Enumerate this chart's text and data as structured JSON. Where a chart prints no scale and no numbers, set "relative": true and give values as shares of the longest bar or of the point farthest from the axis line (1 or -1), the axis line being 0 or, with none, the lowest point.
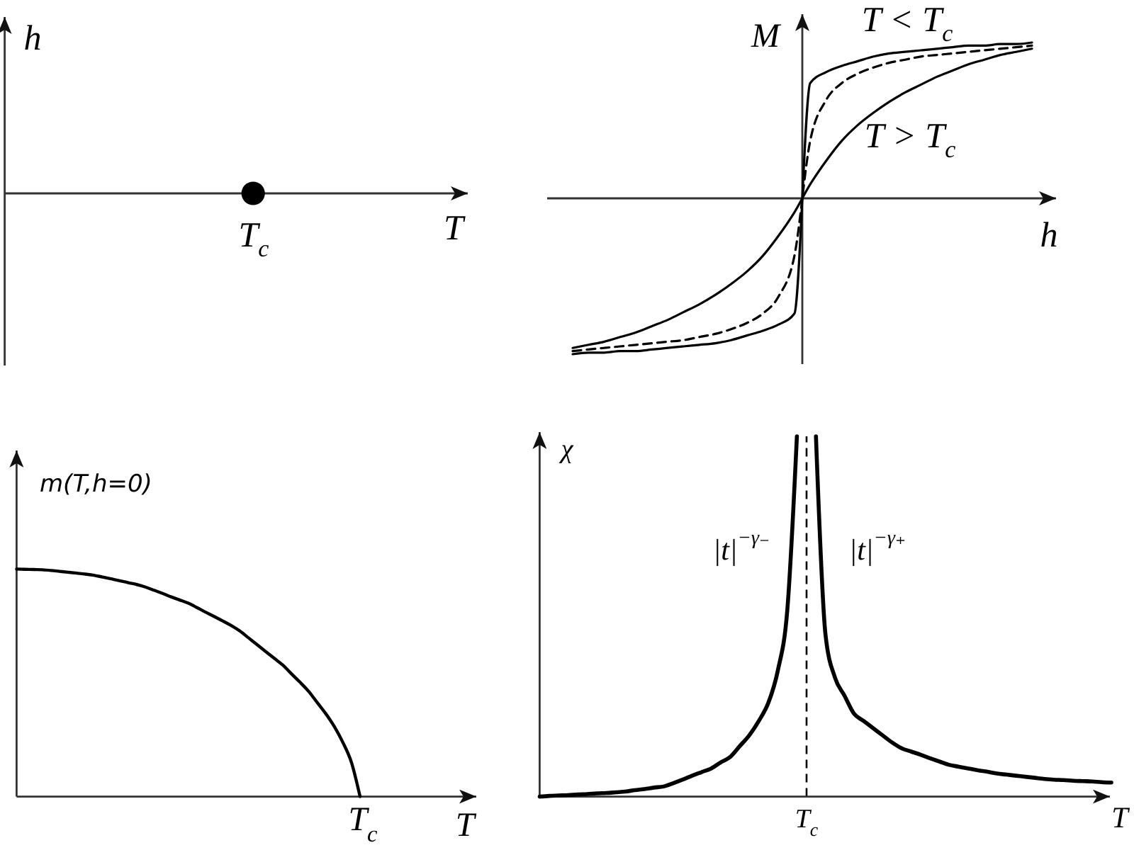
{
  "chart_data": [
    {
      "type": "other",
      "xlabel": "T",
      "ylabel": "h",
      "annotations": [
        "T$_{c}$"
      ]
    },
    {
      "type": "line",
      "xlabel": "h",
      "ylabel": "M",
      "relative": true,
      "categories": [
        null,
        null,
        null,
        null,
        null,
        null,
        null,
        null,
        null,
        null,
        null,
        null,
        null,
        null,
        null,
        null,
        null,
        null,
        null,
        null,
        null,
        null,
        null,
        null,
        null,
        null,
        null,
        null,
        null,
        null
      ],
      "series": [
        {
          "name": "T < T$_{c}$",
          "color": "#000000",
          "values": [
            -1,
            -0.99,
            -0.99,
            -0.98,
            -0.98,
            -0.97,
            -0.96,
            -0.95,
            -0.94,
            -0.93,
            -0.91,
            -0.88,
            -0.85,
            -0.81,
            -0.74,
            0.74,
            0.81,
            0.85,
            0.88,
            0.91,
            0.93,
            0.94,
            0.95,
            0.96,
            0.97,
            0.98,
            0.98,
            0.99,
            0.99,
            1
          ]
        },
        {
          "color": "#000000",
          "line_style": "dashed",
          "values": [
            -0.98,
            -0.97,
            -0.96,
            -0.95,
            -0.94,
            -0.93,
            -0.92,
            -0.91,
            -0.89,
            -0.87,
            -0.84,
            -0.8,
            -0.74,
            -0.63,
            -0.37,
            0.37,
            0.63,
            0.74,
            0.8,
            0.84,
            0.87,
            0.89,
            0.91,
            0.92,
            0.93,
            0.94,
            0.95,
            0.96,
            0.97,
            0.98
          ]
        },
        {
          "name": "T > T$_{c}$",
          "color": "#000000",
          "values": [
            -0.96,
            -0.94,
            -0.92,
            -0.89,
            -0.86,
            -0.82,
            -0.78,
            -0.73,
            -0.68,
            -0.62,
            -0.55,
            -0.47,
            -0.37,
            -0.24,
            -0.09,
            0.09,
            0.24,
            0.37,
            0.47,
            0.55,
            0.62,
            0.68,
            0.73,
            0.78,
            0.82,
            0.86,
            0.89,
            0.92,
            0.94,
            0.96
          ]
        }
      ]
    },
    {
      "type": "line",
      "xlabel": "T",
      "ylabel": "m(T,h=0)",
      "relative": true,
      "categories": [
        null,
        null,
        null,
        null,
        null,
        null,
        null,
        null,
        null,
        null,
        null,
        null,
        null,
        null,
        null,
        null,
        null,
        null,
        null,
        null,
        null,
        null,
        null,
        null,
        null,
        null,
        null,
        null,
        null,
        null,
        null,
        null,
        null,
        null,
        null,
        null,
        null,
        null,
        null,
        null,
        null
      ],
      "annotations": [
        "T$_{c}$"
      ],
      "series": [
        {
          "color": "#000000",
          "values": [
            1,
            0.999,
            0.998,
            0.997,
            0.994,
            0.99,
            0.986,
            0.982,
            0.978,
            0.973,
            0.965,
            0.957,
            0.949,
            0.94,
            0.932,
            0.921,
            0.907,
            0.893,
            0.878,
            0.864,
            0.85,
            0.831,
            0.811,
            0.792,
            0.772,
            0.752,
            0.728,
            0.698,
            0.668,
            0.638,
            0.608,
            0.578,
            0.54,
            0.503,
            0.463,
            0.414,
            0.365,
            0.308,
            0.238,
            0.15,
            0
          ]
        }
      ]
    },
    {
      "type": "line",
      "xlabel": "T",
      "ylabel": "χ",
      "relative": true,
      "categories": [
        null,
        null,
        null,
        null,
        null,
        null,
        null,
        null,
        null,
        null,
        null,
        null,
        null,
        null,
        null,
        null,
        null,
        null,
        null,
        null,
        null,
        null,
        null,
        null,
        null,
        null,
        null,
        null,
        null,
        null,
        null,
        null,
        null,
        null,
        null,
        null,
        null,
        null,
        null,
        null,
        null,
        null,
        null,
        null,
        null,
        null,
        null,
        null,
        null,
        null,
        null,
        null,
        null,
        null,
        null,
        null,
        null,
        null,
        null,
        null,
        null
      ],
      "annotations": [
        "T$_{c}$"
      ],
      "series": [
        {
          "name": "|t|$^{−γ₋}$",
          "color": "#000000",
          "values": [
            0,
            0.002,
            0.003,
            0.004,
            0.006,
            0.007,
            0.009,
            0.01,
            0.012,
            0.014,
            0.018,
            0.021,
            0.025,
            0.028,
            0.037,
            0.047,
            0.058,
            0.068,
            0.078,
            0.095,
            0.11,
            0.14,
            0.17,
            0.21,
            0.26,
            0.35,
            0.52,
            1,
            null,
            null,
            null,
            null,
            null,
            null,
            null,
            null,
            null,
            null,
            null,
            null,
            null,
            null,
            null,
            null,
            null,
            null,
            null,
            null,
            null,
            null,
            null,
            null,
            null,
            null,
            null,
            null,
            null,
            null,
            null,
            null,
            null
          ]
        },
        {
          "name": "|t|$^{−γ₊}$",
          "color": "#000000",
          "values": [
            null,
            null,
            null,
            null,
            null,
            null,
            null,
            null,
            null,
            null,
            null,
            null,
            null,
            null,
            null,
            null,
            null,
            null,
            null,
            null,
            null,
            null,
            null,
            null,
            null,
            null,
            null,
            null,
            null,
            1,
            0.45,
            0.33,
            0.28,
            0.23,
            0.21,
            0.19,
            0.17,
            0.15,
            0.134,
            0.125,
            0.116,
            0.106,
            0.097,
            0.088,
            0.083,
            0.078,
            0.073,
            0.069,
            0.064,
            0.061,
            0.058,
            0.055,
            0.052,
            0.049,
            0.047,
            0.046,
            0.044,
            0.043,
            0.042,
            0.04,
            0.039
          ]
        }
      ]
    }
  ]
}
